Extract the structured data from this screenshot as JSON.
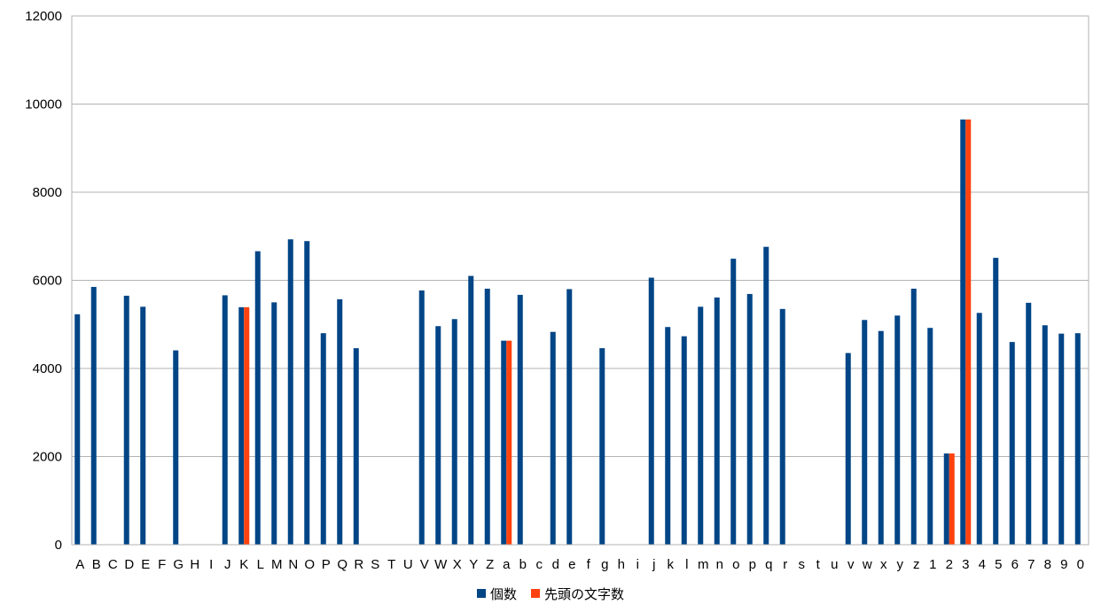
{
  "chart_data": {
    "type": "bar",
    "categories": [
      "A",
      "B",
      "C",
      "D",
      "E",
      "F",
      "G",
      "H",
      "I",
      "J",
      "K",
      "L",
      "M",
      "N",
      "O",
      "P",
      "Q",
      "R",
      "S",
      "T",
      "U",
      "V",
      "W",
      "X",
      "Y",
      "Z",
      "a",
      "b",
      "c",
      "d",
      "e",
      "f",
      "g",
      "h",
      "i",
      "j",
      "k",
      "l",
      "m",
      "n",
      "o",
      "p",
      "q",
      "r",
      "s",
      "t",
      "u",
      "v",
      "w",
      "x",
      "y",
      "z",
      "1",
      "2",
      "3",
      "4",
      "5",
      "6",
      "7",
      "8",
      "9",
      "0"
    ],
    "series": [
      {
        "name": "個数",
        "color": "#004586",
        "values": [
          5230,
          5850,
          0,
          5650,
          5400,
          0,
          4410,
          0,
          0,
          5660,
          5390,
          6660,
          5500,
          6930,
          6890,
          4800,
          5570,
          4460,
          0,
          0,
          0,
          5770,
          4960,
          5120,
          6100,
          5810,
          4630,
          5670,
          0,
          4830,
          5800,
          0,
          4460,
          0,
          0,
          6060,
          4940,
          4730,
          5400,
          5610,
          6490,
          5690,
          6760,
          5350,
          0,
          0,
          0,
          4350,
          5100,
          4850,
          5200,
          5810,
          4920,
          2070,
          9650,
          5260,
          6510,
          4600,
          5490,
          4980,
          4790,
          4800
        ]
      },
      {
        "name": "先頭の文字数",
        "color": "#ff420e",
        "values": [
          0,
          0,
          0,
          0,
          0,
          0,
          0,
          0,
          0,
          0,
          5390,
          0,
          0,
          0,
          0,
          0,
          0,
          0,
          0,
          0,
          0,
          0,
          0,
          0,
          0,
          0,
          4630,
          0,
          0,
          0,
          0,
          0,
          0,
          0,
          0,
          0,
          0,
          0,
          0,
          0,
          0,
          0,
          0,
          0,
          0,
          0,
          0,
          0,
          0,
          0,
          0,
          0,
          0,
          2070,
          9650,
          0,
          0,
          0,
          0,
          0,
          0,
          0
        ]
      }
    ],
    "yticks": [
      "0",
      "2000",
      "4000",
      "6000",
      "8000",
      "10000",
      "12000"
    ],
    "ylim": [
      0,
      12000
    ],
    "grid": true,
    "legend_position": "bottom"
  }
}
